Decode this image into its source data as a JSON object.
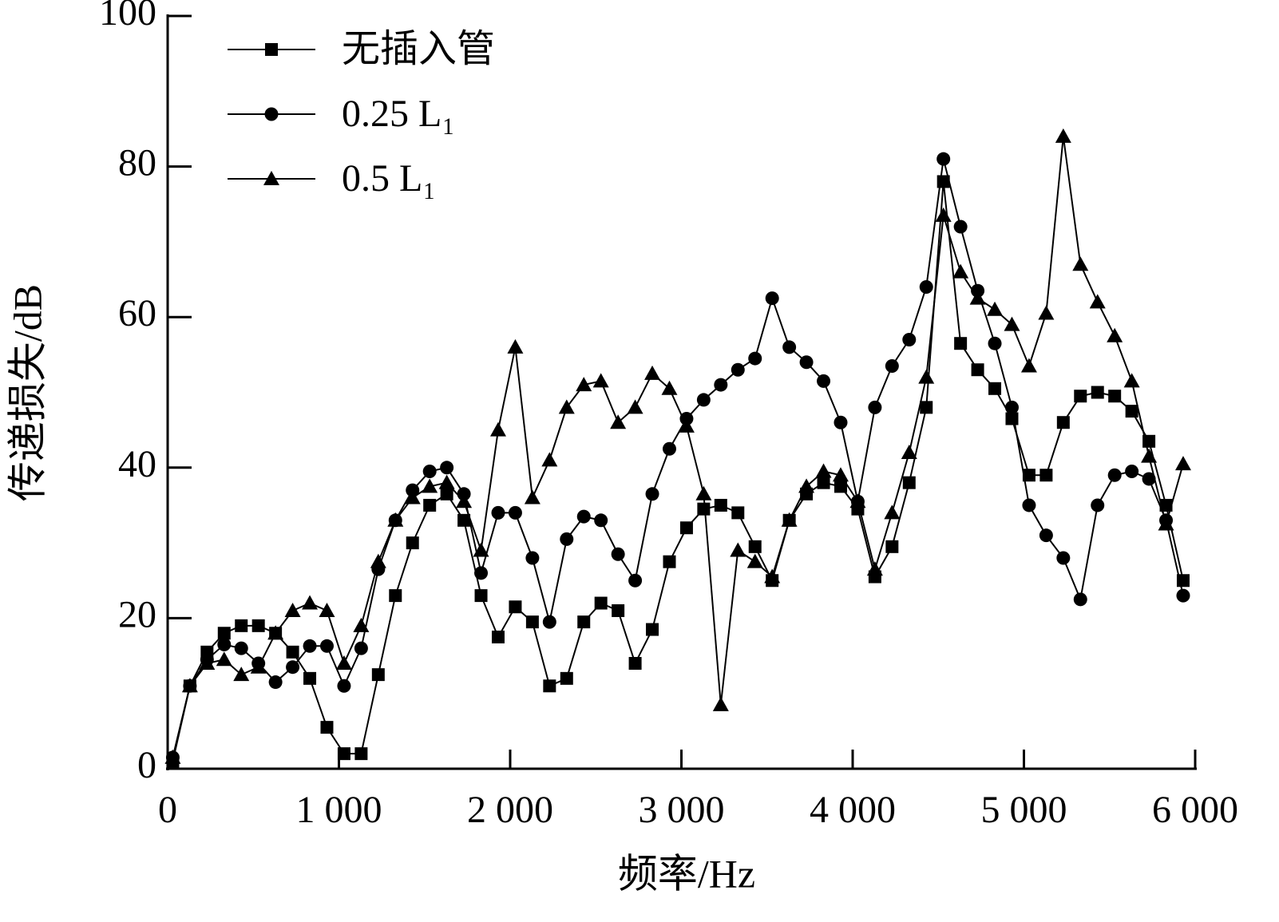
{
  "chart_data": {
    "type": "line",
    "x_label": "频率/Hz",
    "y_label": "传递损失/dB",
    "xlim": [
      0,
      6000
    ],
    "ylim": [
      0,
      100
    ],
    "xticks": [
      0,
      {
        "value": 1000,
        "label": "1 000"
      },
      {
        "value": 2000,
        "label": "2 000"
      },
      {
        "value": 3000,
        "label": "3 000"
      },
      {
        "value": 4000,
        "label": "4 000"
      },
      {
        "value": 5000,
        "label": "5 000"
      },
      {
        "value": 6000,
        "label": "6 000"
      }
    ],
    "yticks": [
      0,
      20,
      40,
      60,
      80,
      100
    ],
    "legend": "top-left",
    "x": [
      30,
      130,
      230,
      330,
      430,
      530,
      630,
      730,
      830,
      930,
      1030,
      1130,
      1230,
      1330,
      1430,
      1530,
      1630,
      1730,
      1830,
      1930,
      2030,
      2130,
      2230,
      2330,
      2430,
      2530,
      2630,
      2730,
      2830,
      2930,
      3030,
      3130,
      3230,
      3330,
      3430,
      3530,
      3630,
      3730,
      3830,
      3930,
      4030,
      4130,
      4230,
      4330,
      4430,
      4530,
      4630,
      4730,
      4830,
      4930,
      5030,
      5130,
      5230,
      5330,
      5430,
      5530,
      5630,
      5730,
      5830,
      5930
    ],
    "series": [
      {
        "name": "无插入管",
        "color": "#000000",
        "marker": "square",
        "values": [
          1,
          11,
          15.5,
          18,
          19,
          19,
          18,
          15.5,
          12,
          5.5,
          2,
          2,
          12.5,
          23,
          30,
          35,
          36.5,
          33,
          23,
          17.5,
          21.5,
          19.5,
          11,
          12,
          19.5,
          22,
          21,
          14,
          18.5,
          27.5,
          32,
          34.5,
          35,
          34,
          29.5,
          25,
          33,
          36.5,
          38,
          37.5,
          34.5,
          25.5,
          29.5,
          38,
          48,
          78,
          56.5,
          53,
          50.5,
          46.5,
          39,
          39,
          46,
          49.5,
          50,
          49.5,
          47.5,
          43.5,
          35,
          25
        ]
      },
      {
        "name": "0.25 L₁",
        "color": "#000000",
        "marker": "circle",
        "values": [
          1.5,
          11,
          14.5,
          16.5,
          16,
          14,
          11.5,
          13.5,
          16.3,
          16.3,
          11,
          16,
          26.5,
          33,
          37,
          39.5,
          40,
          36.5,
          26,
          34,
          34,
          28,
          19.5,
          30.5,
          33.5,
          33,
          28.5,
          25,
          36.5,
          42.5,
          46.5,
          49,
          51,
          53,
          54.5,
          62.5,
          56,
          54,
          51.5,
          46,
          35.5,
          48,
          53.5,
          57,
          64,
          81,
          72,
          63.5,
          56.5,
          48,
          35,
          31,
          28,
          22.5,
          35,
          39,
          39.5,
          38.5,
          33,
          23
        ]
      },
      {
        "name": "0.5 L₁",
        "color": "#000000",
        "marker": "triangle",
        "values": [
          1.5,
          11,
          14,
          14.5,
          12.5,
          13.5,
          18,
          21,
          22,
          21,
          14,
          19,
          27.5,
          33,
          36,
          37.5,
          38,
          35.5,
          29,
          45,
          56,
          36,
          41,
          48,
          51,
          51.5,
          46,
          48,
          52.5,
          50.5,
          45.5,
          36.5,
          8.5,
          29,
          27.5,
          25.5,
          33,
          37.5,
          39.5,
          39,
          35.5,
          26.5,
          34,
          42,
          52,
          73.5,
          66,
          62.5,
          61,
          59,
          53.5,
          60.5,
          84,
          67,
          62,
          57.5,
          51.5,
          41.5,
          32.5,
          40.5
        ]
      }
    ]
  }
}
